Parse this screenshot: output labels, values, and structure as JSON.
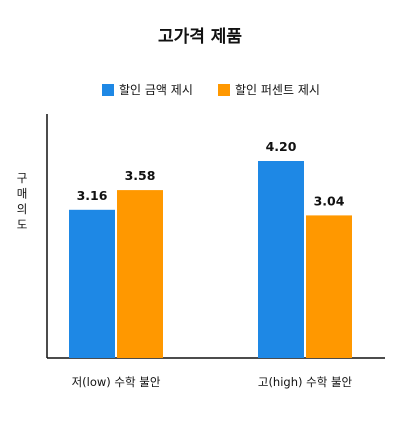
{
  "chart_data": {
    "type": "bar",
    "title": "고가격 제품",
    "ylabel": "구매의도",
    "xlabel": "",
    "categories": [
      "저(low) 수학 불안",
      "고(high) 수학 불안"
    ],
    "series": [
      {
        "name": "할인 금액 제시",
        "color": "#1E88E5",
        "values": [
          3.16,
          4.2
        ]
      },
      {
        "name": "할인 퍼센트 제시",
        "color": "#FF9800",
        "values": [
          3.58,
          3.04
        ]
      }
    ],
    "value_labels": [
      [
        "3.16",
        "4.20"
      ],
      [
        "3.58",
        "3.04"
      ]
    ],
    "ylim": [
      0,
      5
    ],
    "grid": false,
    "legend_position": "top-center"
  }
}
